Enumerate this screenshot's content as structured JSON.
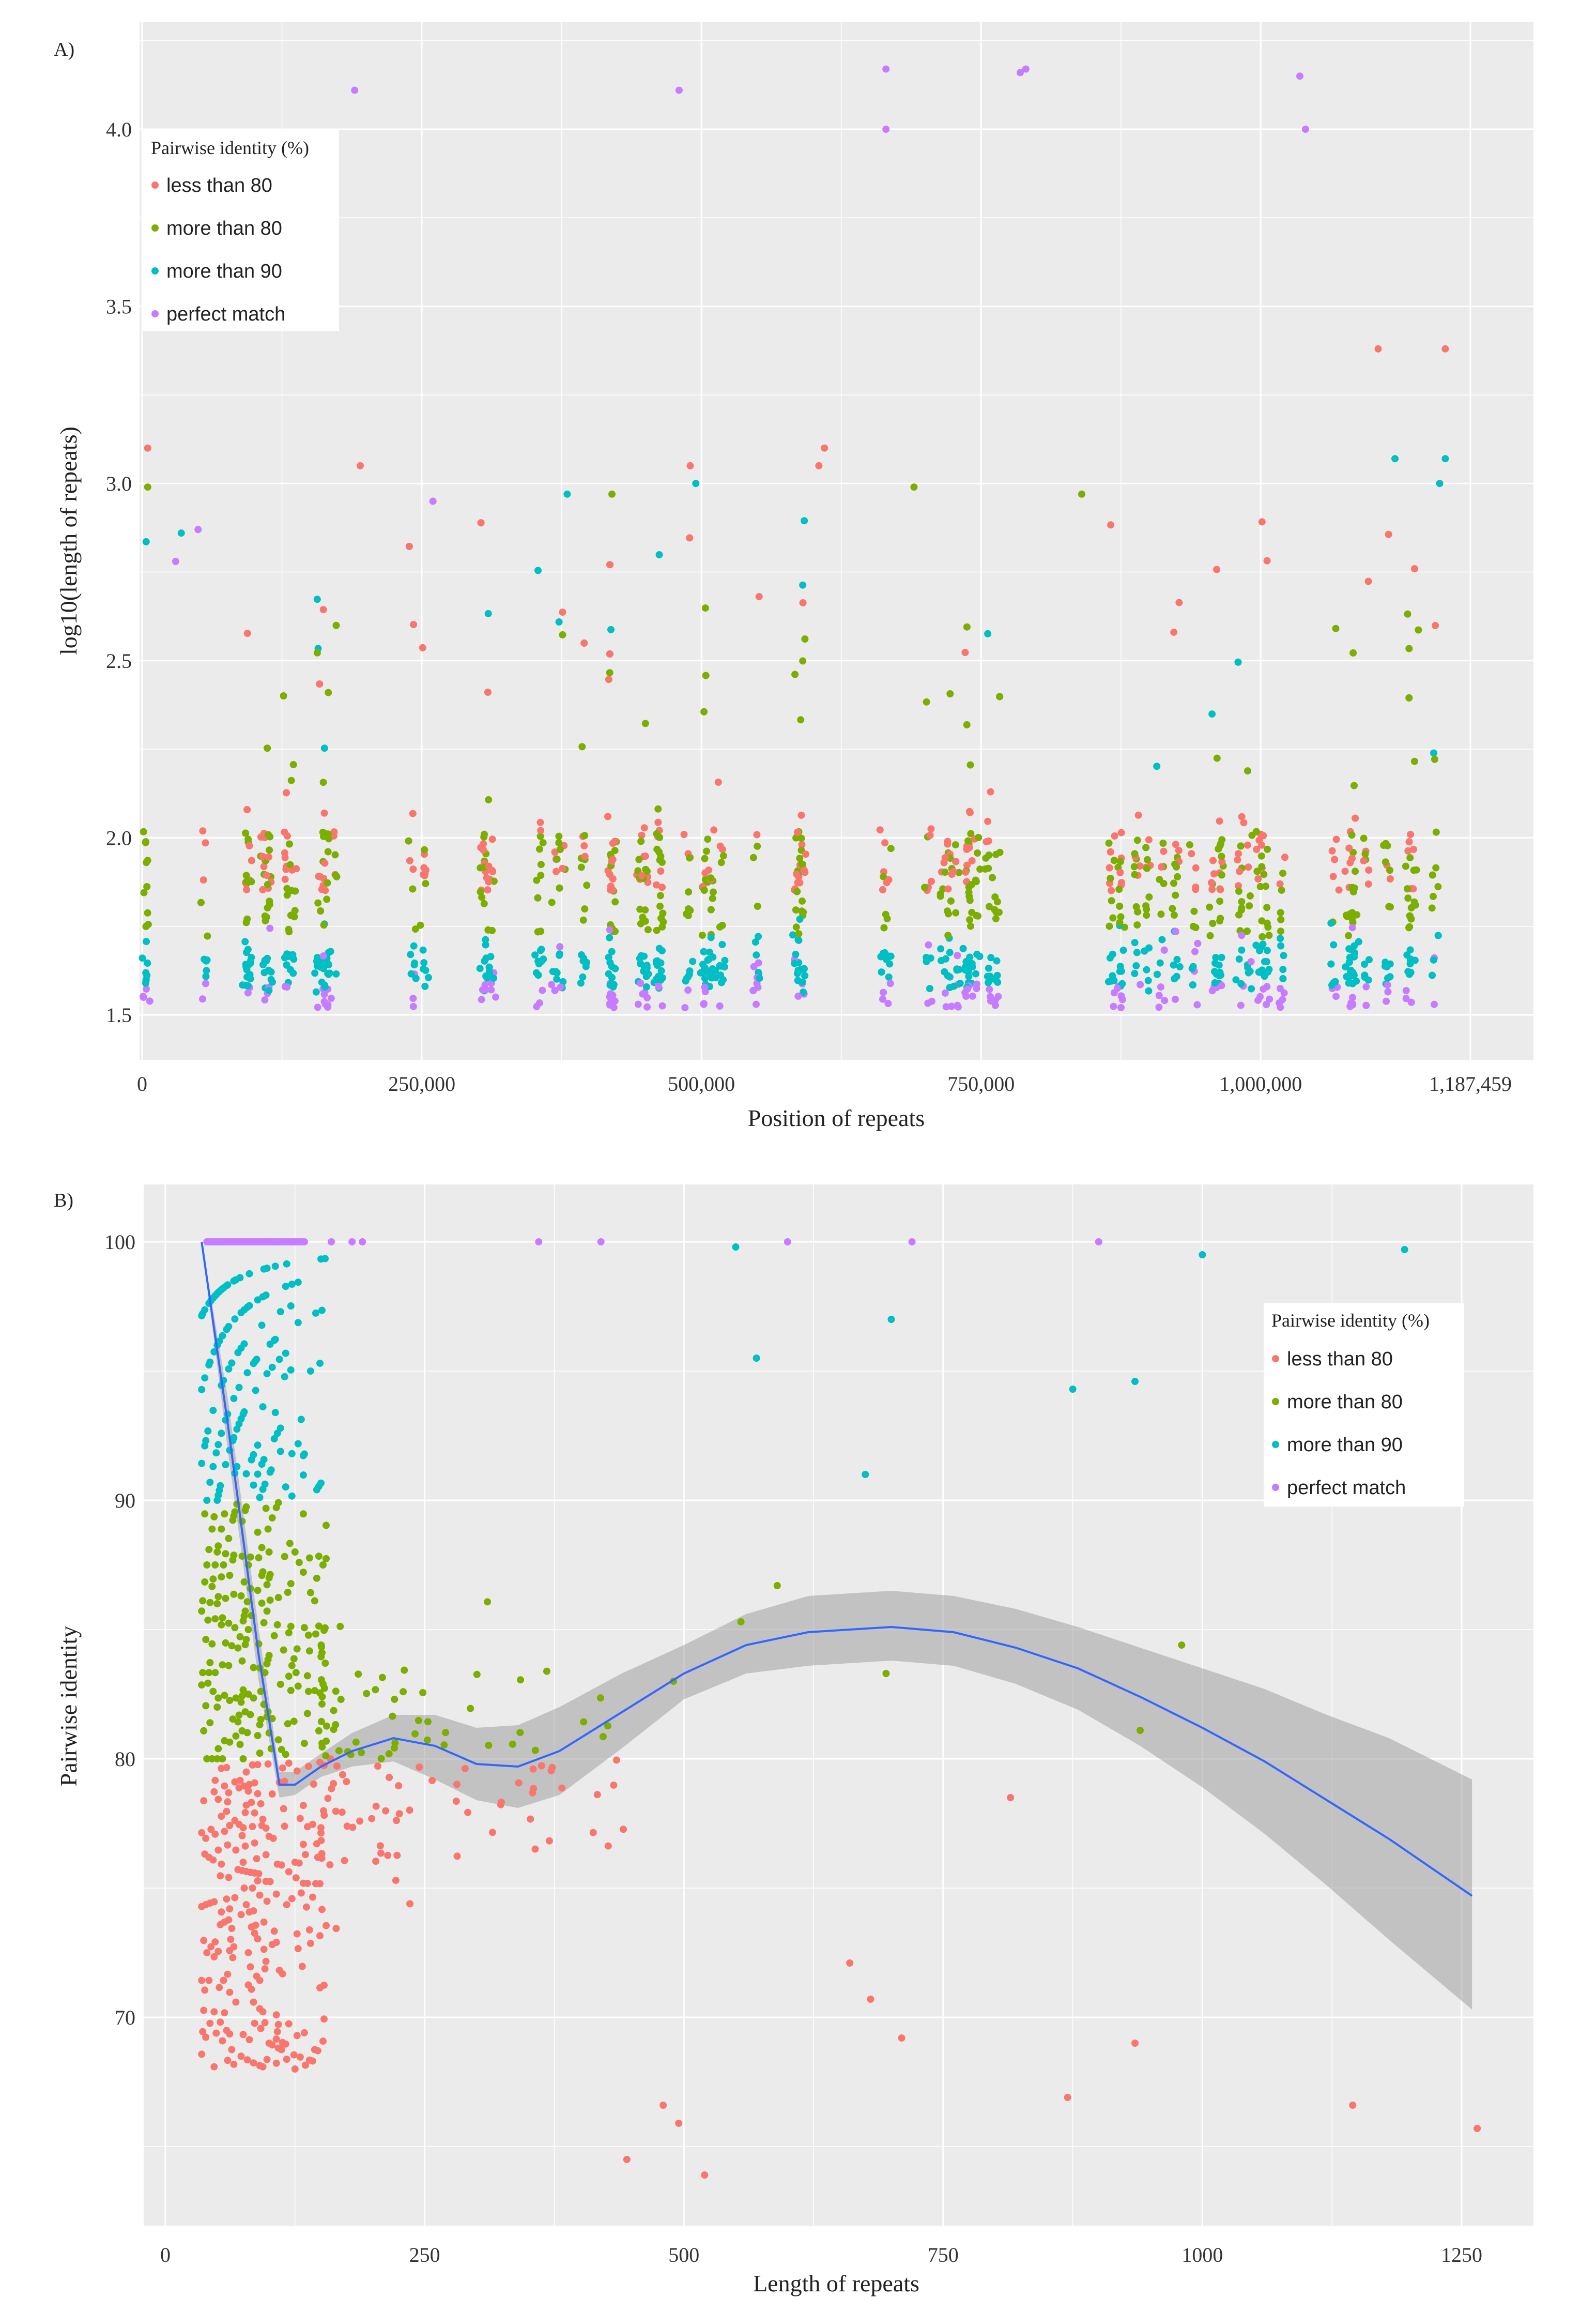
{
  "chart_data": [
    {
      "panel": "A)",
      "type": "scatter",
      "xlabel": "Position of repeats",
      "ylabel": "log10(length of repeats)",
      "xlim": [
        0,
        1187459
      ],
      "ylim": [
        1.48,
        4.3
      ],
      "x_ticks": [
        0,
        250000,
        500000,
        750000,
        1000000,
        1187459
      ],
      "x_tick_labels": [
        "0",
        "250,000",
        "500,000",
        "750,000",
        "1,000,000",
        "1,187,459"
      ],
      "y_ticks": [
        1.5,
        2.0,
        2.5,
        3.0,
        3.5,
        4.0
      ],
      "y_tick_labels": [
        "1.5",
        "2.0",
        "2.5",
        "3.0",
        "3.5",
        "4.0"
      ],
      "legend_position": "top-left",
      "legend": {
        "title": "Pairwise identity (%)",
        "entries": [
          "less than 80",
          "more than 80",
          "more than 90",
          "perfect match"
        ],
        "colors": [
          "#F8766D",
          "#7CAE00",
          "#00BFC4",
          "#C77CFF"
        ]
      },
      "outliers": [
        {
          "x": 190000,
          "y": 4.11,
          "group": "perfect match"
        },
        {
          "x": 480000,
          "y": 4.11,
          "group": "perfect match"
        },
        {
          "x": 665000,
          "y": 4.17,
          "group": "perfect match"
        },
        {
          "x": 665000,
          "y": 4.0,
          "group": "perfect match"
        },
        {
          "x": 785000,
          "y": 4.16,
          "group": "perfect match"
        },
        {
          "x": 790000,
          "y": 4.17,
          "group": "perfect match"
        },
        {
          "x": 1035000,
          "y": 4.15,
          "group": "perfect match"
        },
        {
          "x": 1040000,
          "y": 4.0,
          "group": "perfect match"
        },
        {
          "x": 1105000,
          "y": 3.38,
          "group": "less than 80"
        },
        {
          "x": 1165000,
          "y": 3.38,
          "group": "less than 80"
        },
        {
          "x": 1120000,
          "y": 3.07,
          "group": "more than 90"
        },
        {
          "x": 1165000,
          "y": 3.07,
          "group": "more than 90"
        },
        {
          "x": 1160000,
          "y": 3.0,
          "group": "more than 90"
        },
        {
          "x": 5000,
          "y": 3.1,
          "group": "less than 80"
        },
        {
          "x": 5000,
          "y": 2.99,
          "group": "more than 80"
        },
        {
          "x": 610000,
          "y": 3.1,
          "group": "less than 80"
        },
        {
          "x": 605000,
          "y": 3.05,
          "group": "less than 80"
        },
        {
          "x": 195000,
          "y": 3.05,
          "group": "less than 80"
        },
        {
          "x": 490000,
          "y": 3.05,
          "group": "less than 80"
        },
        {
          "x": 495000,
          "y": 3.0,
          "group": "more than 90"
        },
        {
          "x": 260000,
          "y": 2.95,
          "group": "perfect match"
        },
        {
          "x": 380000,
          "y": 2.97,
          "group": "more than 90"
        },
        {
          "x": 420000,
          "y": 2.97,
          "group": "more than 80"
        },
        {
          "x": 690000,
          "y": 2.99,
          "group": "more than 80"
        },
        {
          "x": 840000,
          "y": 2.97,
          "group": "more than 80"
        },
        {
          "x": 35000,
          "y": 2.86,
          "group": "more than 90"
        },
        {
          "x": 50000,
          "y": 2.87,
          "group": "perfect match"
        },
        {
          "x": 30000,
          "y": 2.78,
          "group": "perfect match"
        }
      ],
      "bulk_note": "About 1,600 repeats spread across the whole genome; the majority lie between 1.5 and 2.3 (log10 length). Cyan (>90%) cluster near 1.55–1.8, green (>80%) near 1.7–2.0, red (<80%) spread 1.8–2.7, purple (perfect match) along the floor near 1.52."
    },
    {
      "panel": "B)",
      "type": "scatter",
      "xlabel": "Length of repeats",
      "ylabel": "Pairwise identity",
      "xlim": [
        -40,
        1320
      ],
      "ylim": [
        62,
        102
      ],
      "x_ticks": [
        0,
        250,
        500,
        750,
        1000,
        1250
      ],
      "x_tick_labels": [
        "0",
        "250",
        "500",
        "750",
        "1000",
        "1250"
      ],
      "y_ticks": [
        70,
        80,
        90,
        100
      ],
      "y_tick_labels": [
        "70",
        "80",
        "90",
        "100"
      ],
      "legend_position": "top-right",
      "legend": {
        "title": "Pairwise identity (%)",
        "entries": [
          "less than 80",
          "more than 80",
          "more than 90",
          "perfect match"
        ],
        "colors": [
          "#F8766D",
          "#7CAE00",
          "#00BFC4",
          "#C77CFF"
        ]
      },
      "smooth": {
        "color": "#3366FF",
        "x": [
          35,
          60,
          90,
          110,
          125,
          150,
          180,
          220,
          260,
          300,
          340,
          380,
          440,
          500,
          560,
          620,
          700,
          760,
          820,
          880,
          940,
          1000,
          1060,
          1120,
          1180,
          1260
        ],
        "y": [
          100,
          93,
          84,
          79,
          79,
          79.7,
          80.3,
          80.8,
          80.5,
          79.8,
          79.7,
          80.3,
          81.8,
          83.3,
          84.4,
          84.9,
          85.1,
          84.9,
          84.3,
          83.5,
          82.4,
          81.2,
          79.9,
          78.4,
          76.9,
          74.7
        ],
        "band_lower": [
          100,
          92,
          83,
          78.5,
          78.6,
          79.3,
          79.7,
          79.9,
          79.2,
          78.4,
          78.1,
          78.6,
          80.4,
          82.3,
          83.3,
          83.6,
          83.8,
          83.6,
          82.9,
          81.9,
          80.5,
          78.9,
          77.1,
          75.1,
          73.0,
          70.3
        ],
        "band_upper": [
          100,
          94,
          85,
          79.5,
          79.5,
          80.2,
          81.0,
          81.7,
          81.7,
          81.2,
          81.3,
          82.0,
          83.3,
          84.4,
          85.6,
          86.3,
          86.5,
          86.3,
          85.8,
          85.1,
          84.3,
          83.5,
          82.7,
          81.7,
          80.8,
          79.2
        ]
      },
      "outliers": [
        {
          "x": 550,
          "y": 99.8,
          "group": "more than 90"
        },
        {
          "x": 1000,
          "y": 99.5,
          "group": "more than 90"
        },
        {
          "x": 1195,
          "y": 99.7,
          "group": "more than 90"
        },
        {
          "x": 700,
          "y": 97,
          "group": "more than 90"
        },
        {
          "x": 570,
          "y": 95.5,
          "group": "more than 90"
        },
        {
          "x": 935,
          "y": 94.6,
          "group": "more than 90"
        },
        {
          "x": 875,
          "y": 94.3,
          "group": "more than 90"
        },
        {
          "x": 675,
          "y": 91,
          "group": "more than 90"
        },
        {
          "x": 590,
          "y": 86.7,
          "group": "more than 80"
        },
        {
          "x": 555,
          "y": 85.3,
          "group": "more than 80"
        },
        {
          "x": 980,
          "y": 84.4,
          "group": "more than 80"
        },
        {
          "x": 695,
          "y": 83.3,
          "group": "more than 80"
        },
        {
          "x": 490,
          "y": 83,
          "group": "more than 80"
        },
        {
          "x": 940,
          "y": 81.1,
          "group": "more than 80"
        },
        {
          "x": 815,
          "y": 78.5,
          "group": "less than 80"
        },
        {
          "x": 660,
          "y": 72.1,
          "group": "less than 80"
        },
        {
          "x": 680,
          "y": 70.7,
          "group": "less than 80"
        },
        {
          "x": 710,
          "y": 69.2,
          "group": "less than 80"
        },
        {
          "x": 935,
          "y": 69,
          "group": "less than 80"
        },
        {
          "x": 870,
          "y": 66.9,
          "group": "less than 80"
        },
        {
          "x": 1145,
          "y": 66.6,
          "group": "less than 80"
        },
        {
          "x": 1265,
          "y": 65.7,
          "group": "less than 80"
        },
        {
          "x": 480,
          "y": 66.6,
          "group": "less than 80"
        },
        {
          "x": 495,
          "y": 65.9,
          "group": "less than 80"
        },
        {
          "x": 520,
          "y": 63.9,
          "group": "less than 80"
        },
        {
          "x": 445,
          "y": 64.5,
          "group": "less than 80"
        },
        {
          "x": 900,
          "y": 100,
          "group": "perfect match"
        },
        {
          "x": 720,
          "y": 100,
          "group": "perfect match"
        },
        {
          "x": 600,
          "y": 100,
          "group": "perfect match"
        },
        {
          "x": 420,
          "y": 100,
          "group": "perfect match"
        },
        {
          "x": 360,
          "y": 100,
          "group": "perfect match"
        }
      ],
      "bulk_note": "Dense fan of points between length 35 and 150: perfect matches on the 100% line, cyan arcs 90–99%, green 80–90%, red 68–80%."
    }
  ]
}
